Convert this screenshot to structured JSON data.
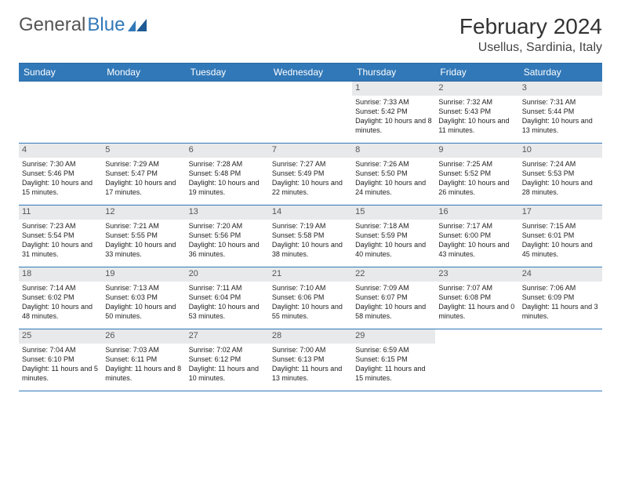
{
  "brand": {
    "part1": "General",
    "part2": "Blue"
  },
  "header": {
    "month_title": "February 2024",
    "location": "Usellus, Sardinia, Italy"
  },
  "colors": {
    "header_bg": "#3178b8",
    "daynum_bg": "#e7e9eb",
    "page_bg": "#ffffff",
    "text": "#222222"
  },
  "day_names": [
    "Sunday",
    "Monday",
    "Tuesday",
    "Wednesday",
    "Thursday",
    "Friday",
    "Saturday"
  ],
  "weeks": [
    [
      null,
      null,
      null,
      null,
      {
        "n": "1",
        "sr": "7:33 AM",
        "ss": "5:42 PM",
        "dl": "10 hours and 8 minutes."
      },
      {
        "n": "2",
        "sr": "7:32 AM",
        "ss": "5:43 PM",
        "dl": "10 hours and 11 minutes."
      },
      {
        "n": "3",
        "sr": "7:31 AM",
        "ss": "5:44 PM",
        "dl": "10 hours and 13 minutes."
      }
    ],
    [
      {
        "n": "4",
        "sr": "7:30 AM",
        "ss": "5:46 PM",
        "dl": "10 hours and 15 minutes."
      },
      {
        "n": "5",
        "sr": "7:29 AM",
        "ss": "5:47 PM",
        "dl": "10 hours and 17 minutes."
      },
      {
        "n": "6",
        "sr": "7:28 AM",
        "ss": "5:48 PM",
        "dl": "10 hours and 19 minutes."
      },
      {
        "n": "7",
        "sr": "7:27 AM",
        "ss": "5:49 PM",
        "dl": "10 hours and 22 minutes."
      },
      {
        "n": "8",
        "sr": "7:26 AM",
        "ss": "5:50 PM",
        "dl": "10 hours and 24 minutes."
      },
      {
        "n": "9",
        "sr": "7:25 AM",
        "ss": "5:52 PM",
        "dl": "10 hours and 26 minutes."
      },
      {
        "n": "10",
        "sr": "7:24 AM",
        "ss": "5:53 PM",
        "dl": "10 hours and 28 minutes."
      }
    ],
    [
      {
        "n": "11",
        "sr": "7:23 AM",
        "ss": "5:54 PM",
        "dl": "10 hours and 31 minutes."
      },
      {
        "n": "12",
        "sr": "7:21 AM",
        "ss": "5:55 PM",
        "dl": "10 hours and 33 minutes."
      },
      {
        "n": "13",
        "sr": "7:20 AM",
        "ss": "5:56 PM",
        "dl": "10 hours and 36 minutes."
      },
      {
        "n": "14",
        "sr": "7:19 AM",
        "ss": "5:58 PM",
        "dl": "10 hours and 38 minutes."
      },
      {
        "n": "15",
        "sr": "7:18 AM",
        "ss": "5:59 PM",
        "dl": "10 hours and 40 minutes."
      },
      {
        "n": "16",
        "sr": "7:17 AM",
        "ss": "6:00 PM",
        "dl": "10 hours and 43 minutes."
      },
      {
        "n": "17",
        "sr": "7:15 AM",
        "ss": "6:01 PM",
        "dl": "10 hours and 45 minutes."
      }
    ],
    [
      {
        "n": "18",
        "sr": "7:14 AM",
        "ss": "6:02 PM",
        "dl": "10 hours and 48 minutes."
      },
      {
        "n": "19",
        "sr": "7:13 AM",
        "ss": "6:03 PM",
        "dl": "10 hours and 50 minutes."
      },
      {
        "n": "20",
        "sr": "7:11 AM",
        "ss": "6:04 PM",
        "dl": "10 hours and 53 minutes."
      },
      {
        "n": "21",
        "sr": "7:10 AM",
        "ss": "6:06 PM",
        "dl": "10 hours and 55 minutes."
      },
      {
        "n": "22",
        "sr": "7:09 AM",
        "ss": "6:07 PM",
        "dl": "10 hours and 58 minutes."
      },
      {
        "n": "23",
        "sr": "7:07 AM",
        "ss": "6:08 PM",
        "dl": "11 hours and 0 minutes."
      },
      {
        "n": "24",
        "sr": "7:06 AM",
        "ss": "6:09 PM",
        "dl": "11 hours and 3 minutes."
      }
    ],
    [
      {
        "n": "25",
        "sr": "7:04 AM",
        "ss": "6:10 PM",
        "dl": "11 hours and 5 minutes."
      },
      {
        "n": "26",
        "sr": "7:03 AM",
        "ss": "6:11 PM",
        "dl": "11 hours and 8 minutes."
      },
      {
        "n": "27",
        "sr": "7:02 AM",
        "ss": "6:12 PM",
        "dl": "11 hours and 10 minutes."
      },
      {
        "n": "28",
        "sr": "7:00 AM",
        "ss": "6:13 PM",
        "dl": "11 hours and 13 minutes."
      },
      {
        "n": "29",
        "sr": "6:59 AM",
        "ss": "6:15 PM",
        "dl": "11 hours and 15 minutes."
      },
      null,
      null
    ]
  ],
  "labels": {
    "sunrise": "Sunrise:",
    "sunset": "Sunset:",
    "daylight": "Daylight:"
  }
}
